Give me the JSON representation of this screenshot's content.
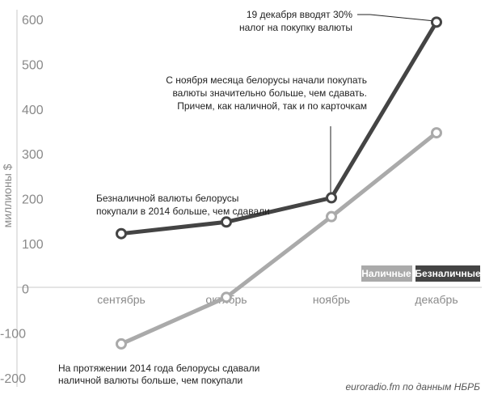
{
  "chart_data": {
    "type": "line",
    "ylabel": "миллионы $",
    "y_ticks": [
      "-200",
      "-100",
      "0",
      "100",
      "200",
      "300",
      "400",
      "500",
      "600"
    ],
    "categories": [
      "сентябрь",
      "октябрь",
      "ноябрь",
      "декабрь"
    ],
    "ylim": [
      -200,
      600
    ],
    "series": [
      {
        "name": "Безналичные",
        "color": "#444444",
        "values": [
          122,
          148,
          202,
          594
        ]
      },
      {
        "name": "Наличные",
        "color": "#aaaaaa",
        "values": [
          -124,
          -20,
          160,
          347
        ]
      }
    ],
    "legend_position": "bottom-right",
    "annotations": [
      {
        "lines": [
          "19 декабря вводят 30%",
          "налог на покупку валюты"
        ]
      },
      {
        "lines": [
          "С ноября месяца белорусы начали покупать",
          "валюты значительно больше, чем сдавать.",
          "Причем, как наличной, так и по карточкам"
        ]
      },
      {
        "lines": [
          "Безналичной валюты белорусы",
          "покупали в 2014 больше, чем сдавали"
        ]
      },
      {
        "lines": [
          "На протяжении 2014 года белорусы сдавали",
          "наличной валюты больше, чем покупали"
        ]
      }
    ],
    "source": "euroradio.fm по данным НБРБ"
  }
}
